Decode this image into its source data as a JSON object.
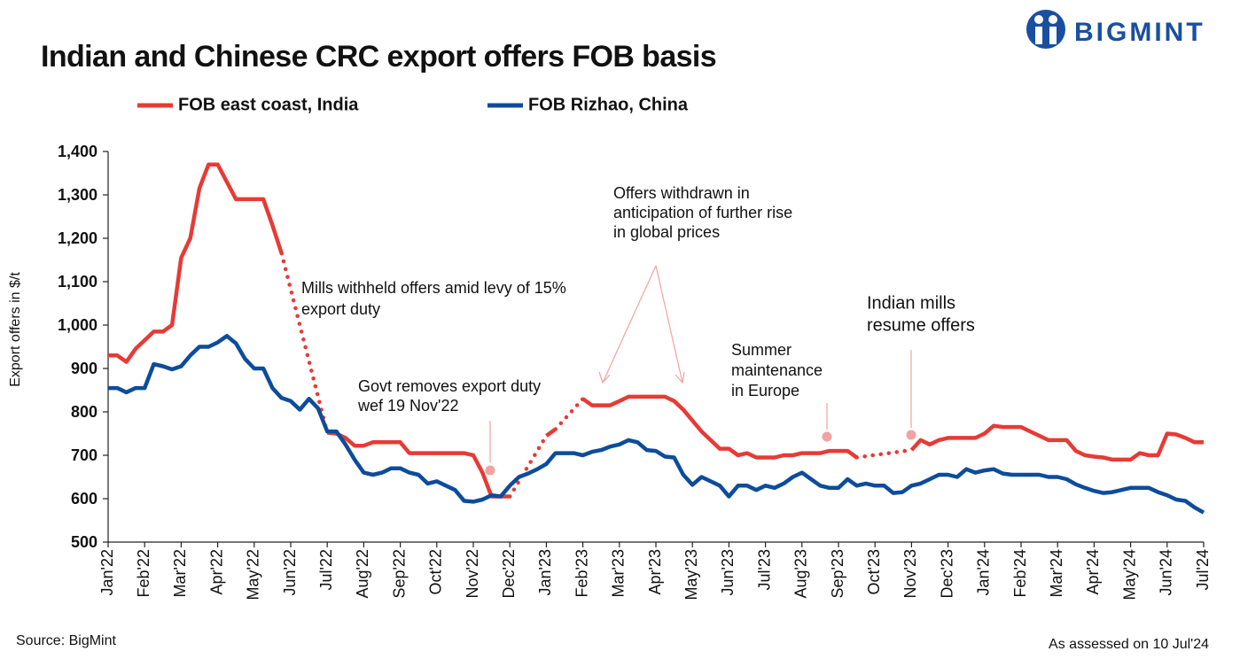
{
  "chart_data": {
    "type": "line",
    "title": "Indian and Chinese CRC export offers FOB basis",
    "logo": "BIGMINT",
    "y_label": "Export offers in $/t",
    "source": "Source: BigMint",
    "assessed": "As assessed on 10 Jul'24",
    "categories": [
      "Jan'22",
      null,
      null,
      null,
      "Feb'22",
      null,
      null,
      null,
      "Mar'22",
      null,
      null,
      null,
      "Apr'22",
      null,
      null,
      null,
      "May'22",
      null,
      null,
      null,
      "Jun'22",
      null,
      null,
      null,
      "Jul'22",
      null,
      null,
      null,
      "Aug'22",
      null,
      null,
      null,
      "Sep'22",
      null,
      null,
      null,
      "Oct'22",
      null,
      null,
      null,
      "Nov'22",
      null,
      null,
      null,
      "Dec'22",
      null,
      null,
      null,
      "Jan'23",
      null,
      null,
      null,
      "Feb'23",
      null,
      null,
      null,
      "Mar'23",
      null,
      null,
      null,
      "Apr'23",
      null,
      null,
      null,
      "May'23",
      null,
      null,
      null,
      "Jun'23",
      null,
      null,
      null,
      "Jul'23",
      null,
      null,
      null,
      "Aug'23",
      null,
      null,
      null,
      "Sep'23",
      null,
      null,
      null,
      "Oct'23",
      null,
      null,
      null,
      "Nov'23",
      null,
      null,
      null,
      "Dec'23",
      null,
      null,
      null,
      "Jan'24",
      null,
      null,
      null,
      "Feb'24",
      null,
      null,
      null,
      "Mar'24",
      null,
      null,
      null,
      "Apr'24",
      null,
      null,
      null,
      "May'24",
      null,
      null,
      null,
      "Jun'24",
      null,
      null,
      null,
      "Jul'24"
    ],
    "series": [
      {
        "name": "FOB east coast, India",
        "color": "#e63b36",
        "gap_line": "dotted",
        "values": [
          930,
          930,
          915,
          945,
          965,
          985,
          985,
          1000,
          1155,
          1200,
          1315,
          1370,
          1370,
          1330,
          1290,
          1290,
          1290,
          1290,
          1230,
          1165,
          null,
          null,
          null,
          null,
          752,
          750,
          740,
          722,
          722,
          730,
          730,
          730,
          730,
          705,
          705,
          705,
          705,
          705,
          705,
          705,
          700,
          660,
          605,
          605,
          605,
          null,
          null,
          null,
          745,
          760,
          null,
          null,
          830,
          815,
          815,
          815,
          825,
          835,
          835,
          835,
          835,
          835,
          825,
          805,
          780,
          755,
          735,
          715,
          715,
          700,
          705,
          695,
          695,
          695,
          700,
          700,
          705,
          705,
          705,
          710,
          710,
          710,
          695,
          null,
          null,
          null,
          null,
          null,
          712,
          735,
          725,
          735,
          740,
          740,
          740,
          740,
          750,
          768,
          765,
          765,
          765,
          755,
          745,
          735,
          735,
          735,
          710,
          700,
          697,
          695,
          690,
          690,
          690,
          705,
          700,
          700,
          750,
          748,
          740,
          730,
          730
        ]
      },
      {
        "name": "FOB Rizhao, China",
        "color": "#0d4c9c",
        "values": [
          855,
          855,
          845,
          855,
          855,
          910,
          905,
          898,
          905,
          930,
          950,
          950,
          960,
          975,
          958,
          922,
          900,
          900,
          855,
          832,
          825,
          805,
          830,
          808,
          755,
          755,
          725,
          690,
          660,
          655,
          660,
          670,
          670,
          660,
          655,
          635,
          640,
          630,
          620,
          595,
          593,
          598,
          608,
          605,
          630,
          650,
          658,
          668,
          680,
          705,
          705,
          705,
          700,
          708,
          712,
          720,
          725,
          735,
          730,
          712,
          710,
          697,
          695,
          655,
          632,
          650,
          640,
          630,
          605,
          630,
          630,
          620,
          630,
          625,
          635,
          650,
          660,
          645,
          630,
          625,
          625,
          645,
          630,
          635,
          630,
          630,
          613,
          615,
          630,
          635,
          645,
          655,
          655,
          650,
          668,
          660,
          665,
          668,
          658,
          655,
          655,
          655,
          655,
          650,
          650,
          645,
          633,
          625,
          618,
          613,
          615,
          620,
          625,
          625,
          625,
          615,
          608,
          598,
          595,
          580,
          568
        ]
      }
    ],
    "ylim": [
      500,
      1400
    ],
    "yticks": [
      500,
      600,
      700,
      800,
      900,
      {
        "value": 1000,
        "label": "1,000"
      },
      {
        "value": 1100,
        "label": "1,100"
      },
      {
        "value": 1200,
        "label": "1,200"
      },
      {
        "value": 1300,
        "label": "1,300"
      },
      {
        "value": 1400,
        "label": "1,400"
      }
    ],
    "grid": false,
    "annotations": [
      [
        "Mills withheld offers amid levy of 15%",
        "export duty"
      ],
      [
        "Govt removes export duty",
        "wef 19 Nov'22"
      ],
      [
        "Offers withdrawn in",
        "anticipation of further rise",
        "in global prices"
      ],
      [
        "Summer",
        "maintenance",
        "in Europe"
      ],
      [
        "Indian mills",
        "resume offers"
      ]
    ]
  }
}
